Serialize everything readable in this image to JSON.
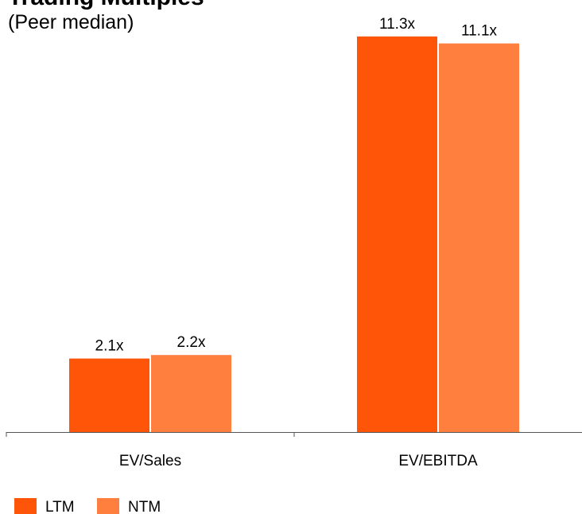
{
  "chart_data": {
    "type": "bar",
    "title": "Trading Multiples",
    "subtitle": "(Peer median)",
    "categories": [
      "EV/Sales",
      "EV/EBITDA"
    ],
    "series": [
      {
        "name": "LTM",
        "color": "#ff5509",
        "values": [
          2.1,
          11.3
        ],
        "value_labels": [
          "2.1x",
          "11.3x"
        ]
      },
      {
        "name": "NTM",
        "color": "#ff7f3f",
        "values": [
          2.2,
          11.1
        ],
        "value_labels": [
          "2.2x",
          "11.1x"
        ]
      }
    ]
  }
}
